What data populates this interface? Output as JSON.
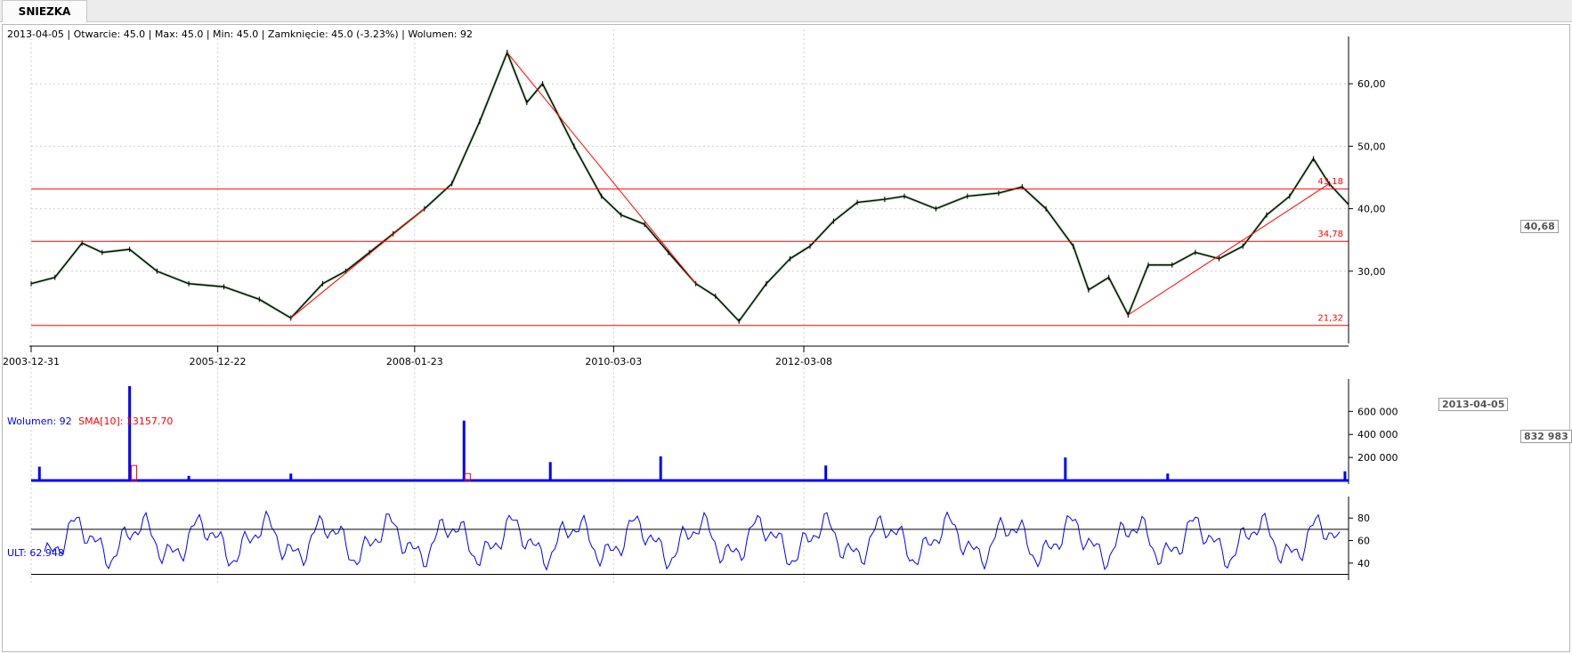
{
  "tab": {
    "symbol": "SNIEZKA"
  },
  "colors": {
    "price": "#000000",
    "up": "#008000",
    "trendline": "#ff0000",
    "volume": "#0000ff",
    "sma": "#ff0000",
    "ult": "#0000ff",
    "grid": "#cfcfcf"
  },
  "price_panel": {
    "info": "2013-04-05 | Otwarcie: 45.0 | Max: 45.0 | Min: 45.0 | Zamknięcie: 45.0 (-3.23%) | Wolumen: 92",
    "last_value_box": "40,68",
    "date_box": "2013-04-05"
  },
  "volume_panel": {
    "label_volume": "Wolumen: 92",
    "label_sma": "SMA[10]: 13157.70",
    "last_value_box": "832 983"
  },
  "ult_panel": {
    "label": "ULT: 62.948"
  },
  "chart_data": [
    {
      "type": "line",
      "title": "SNIEZKA",
      "x_ticks": [
        "2003-12-31",
        "2005-12-22",
        "2008-01-23",
        "2010-03-03",
        "2012-03-08"
      ],
      "y_ticks": [
        "30,00",
        "40,00",
        "50,00",
        "60,00"
      ],
      "ylim": [
        19,
        67
      ],
      "series": [
        {
          "points": [
            [
              "2003-12-31",
              28
            ],
            [
              "2004-04-01",
              29
            ],
            [
              "2004-07-15",
              34.5
            ],
            [
              "2004-10-01",
              33
            ],
            [
              "2005-01-15",
              33.5
            ],
            [
              "2005-05-01",
              30
            ],
            [
              "2005-09-01",
              28
            ],
            [
              "2006-01-15",
              27.5
            ],
            [
              "2006-06-01",
              25.5
            ],
            [
              "2006-10-01",
              22.5
            ],
            [
              "2007-02-01",
              28
            ],
            [
              "2007-05-01",
              30
            ],
            [
              "2007-08-01",
              33
            ],
            [
              "2007-11-01",
              36
            ],
            [
              "2008-03-01",
              40
            ],
            [
              "2008-06-15",
              44
            ],
            [
              "2008-10-01",
              54
            ],
            [
              "2009-01-15",
              65
            ],
            [
              "2009-04-01",
              57
            ],
            [
              "2009-06-01",
              60
            ],
            [
              "2009-10-01",
              50
            ],
            [
              "2010-01-15",
              42
            ],
            [
              "2010-04-01",
              39
            ],
            [
              "2010-07-01",
              37.5
            ],
            [
              "2010-10-01",
              33
            ],
            [
              "2011-01-15",
              28
            ],
            [
              "2011-04-01",
              26
            ],
            [
              "2011-07-01",
              22
            ],
            [
              "2011-10-15",
              28
            ],
            [
              "2012-01-15",
              32
            ],
            [
              "2012-04-01",
              34
            ],
            [
              "2012-07-01",
              38
            ],
            [
              "2012-10-01",
              41
            ],
            [
              "2013-01-15",
              41.5
            ],
            [
              "2013-04-01",
              42
            ],
            [
              "2013-08-01",
              40
            ],
            [
              "2013-12-01",
              42
            ],
            [
              "2014-04-01",
              42.5
            ],
            [
              "2014-07-01",
              43.5
            ],
            [
              "2014-10-01",
              40
            ],
            [
              "2015-01-15",
              34
            ],
            [
              "2015-03-15",
              27
            ],
            [
              "2015-06-01",
              29
            ],
            [
              "2015-08-15",
              23
            ],
            [
              "2015-11-01",
              31
            ],
            [
              "2016-02-01",
              31
            ],
            [
              "2016-05-01",
              33
            ],
            [
              "2016-08-01",
              32
            ],
            [
              "2016-11-01",
              34
            ],
            [
              "2017-02-01",
              39
            ],
            [
              "2017-05-01",
              42
            ],
            [
              "2017-08-01",
              48
            ],
            [
              "2017-10-01",
              44
            ],
            [
              "2017-12-15",
              40.68
            ]
          ]
        }
      ],
      "hlines": [
        "43,18",
        "34,78",
        "21,32"
      ]
    },
    {
      "type": "bar",
      "series": [
        {
          "name": "Wolumen",
          "points": [
            [
              "2004-02-01",
              120000
            ],
            [
              "2005-01-15",
              820000
            ],
            [
              "2005-09-01",
              40000
            ],
            [
              "2006-10-01",
              60000
            ],
            [
              "2008-08-01",
              520000
            ],
            [
              "2009-07-01",
              160000
            ],
            [
              "2010-09-01",
              210000
            ],
            [
              "2012-06-01",
              130000
            ],
            [
              "2014-12-15",
              200000
            ],
            [
              "2016-01-15",
              60000
            ],
            [
              "2017-12-01",
              80000
            ]
          ]
        },
        {
          "name": "SMA[10]",
          "points": [
            [
              "2005-02-01",
              130000
            ],
            [
              "2008-08-15",
              60000
            ]
          ]
        }
      ],
      "y_ticks": [
        "200 000",
        "400 000",
        "600 000"
      ],
      "ylim": [
        0,
        850000
      ]
    },
    {
      "type": "line",
      "series": [
        {
          "name": "ULT",
          "points": []
        }
      ],
      "y_ticks": [
        "40",
        "60",
        "80"
      ],
      "ylim": [
        28,
        96
      ]
    }
  ]
}
